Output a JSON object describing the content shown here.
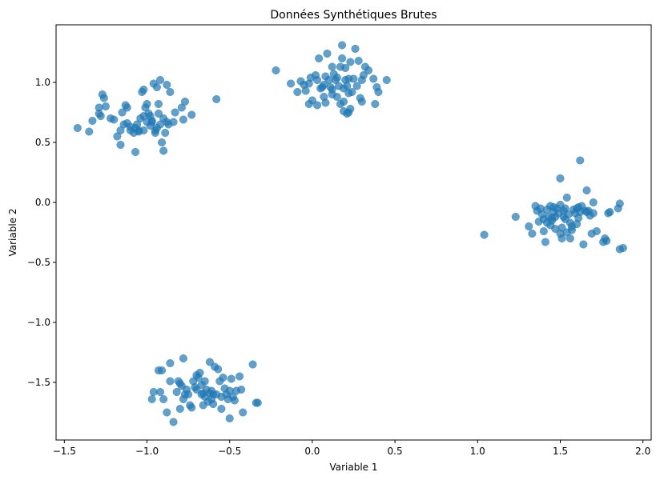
{
  "chart_data": {
    "type": "scatter",
    "title": "Données Synthétiques Brutes",
    "xlabel": "Variable 1",
    "ylabel": "Variable 2",
    "xlim": [
      -1.55,
      2.05
    ],
    "ylim": [
      -1.98,
      1.48
    ],
    "xticks": [
      -1.5,
      -1.0,
      -0.5,
      0.0,
      0.5,
      1.0,
      1.5,
      2.0
    ],
    "xtick_labels": [
      "−1.5",
      "−1.0",
      "−0.5",
      "0.0",
      "0.5",
      "1.0",
      "1.5",
      "2.0"
    ],
    "yticks": [
      -1.5,
      -1.0,
      -0.5,
      0.0,
      0.5,
      1.0
    ],
    "ytick_labels": [
      "−1.5",
      "−1.0",
      "−0.5",
      "0.0",
      "0.5",
      "1.0"
    ],
    "grid": false,
    "color": "#1f77b4",
    "opacity": 0.7,
    "series": [
      {
        "points": [
          [
            -1.42,
            0.62
          ],
          [
            -1.35,
            0.59
          ],
          [
            -1.33,
            0.68
          ],
          [
            -1.29,
            0.74
          ],
          [
            -1.29,
            0.79
          ],
          [
            -1.27,
            0.9
          ],
          [
            -1.26,
            0.87
          ],
          [
            -1.25,
            0.8
          ],
          [
            -1.28,
            0.72
          ],
          [
            -1.22,
            0.7
          ],
          [
            -1.2,
            0.69
          ],
          [
            -1.18,
            0.55
          ],
          [
            -1.16,
            0.48
          ],
          [
            -1.16,
            0.6
          ],
          [
            -1.14,
            0.65
          ],
          [
            -1.12,
            0.66
          ],
          [
            -1.12,
            0.79
          ],
          [
            -1.15,
            0.75
          ],
          [
            -1.13,
            0.81
          ],
          [
            -1.1,
            0.6
          ],
          [
            -1.08,
            0.58
          ],
          [
            -1.07,
            0.62
          ],
          [
            -1.06,
            0.65
          ],
          [
            -1.07,
            0.42
          ],
          [
            -1.05,
            0.59
          ],
          [
            -1.04,
            0.7
          ],
          [
            -1.02,
            0.6
          ],
          [
            -1.03,
            0.92
          ],
          [
            -1.02,
            0.94
          ],
          [
            -1.0,
            0.82
          ],
          [
            -0.99,
            0.74
          ],
          [
            -0.98,
            0.64
          ],
          [
            -0.98,
            0.72
          ],
          [
            -0.97,
            0.68
          ],
          [
            -0.96,
            0.99
          ],
          [
            -0.94,
            0.96
          ],
          [
            -0.95,
            0.6
          ],
          [
            -0.94,
            0.62
          ],
          [
            -0.93,
            0.82
          ],
          [
            -0.93,
            0.74
          ],
          [
            -0.92,
            0.65
          ],
          [
            -0.91,
            0.5
          ],
          [
            -0.9,
            0.43
          ],
          [
            -0.89,
            0.58
          ],
          [
            -0.88,
            0.67
          ],
          [
            -0.87,
            0.65
          ],
          [
            -0.86,
            0.92
          ],
          [
            -0.84,
            0.67
          ],
          [
            -0.83,
            0.75
          ],
          [
            -0.79,
            0.79
          ],
          [
            -0.78,
            0.69
          ],
          [
            -0.77,
            0.84
          ],
          [
            -0.73,
            0.73
          ],
          [
            -0.9,
            0.7
          ],
          [
            -0.97,
            0.67
          ],
          [
            -1.0,
            0.67
          ],
          [
            -1.01,
            0.79
          ],
          [
            -1.1,
            0.63
          ],
          [
            -1.02,
            0.72
          ],
          [
            -0.58,
            0.86
          ],
          [
            -0.92,
            1.02
          ],
          [
            -0.88,
            0.98
          ],
          [
            -0.95,
            0.58
          ],
          [
            -1.05,
            0.6
          ]
        ]
      },
      {
        "points": [
          [
            -0.22,
            1.1
          ],
          [
            -0.13,
            0.99
          ],
          [
            -0.09,
            0.92
          ],
          [
            -0.07,
            1.01
          ],
          [
            -0.05,
            0.98
          ],
          [
            -0.04,
            0.93
          ],
          [
            -0.02,
            0.82
          ],
          [
            -0.02,
            0.99
          ],
          [
            -0.01,
            1.04
          ],
          [
            0.0,
            0.85
          ],
          [
            0.02,
            1.06
          ],
          [
            0.03,
            1.02
          ],
          [
            0.03,
            0.81
          ],
          [
            0.04,
            1.2
          ],
          [
            0.05,
            0.95
          ],
          [
            0.06,
            0.96
          ],
          [
            0.07,
            0.98
          ],
          [
            0.08,
            1.05
          ],
          [
            0.08,
            0.83
          ],
          [
            0.09,
            1.24
          ],
          [
            0.1,
            1.02
          ],
          [
            0.11,
            0.96
          ],
          [
            0.12,
            1.13
          ],
          [
            0.12,
            0.94
          ],
          [
            0.13,
            1.07
          ],
          [
            0.14,
            1.02
          ],
          [
            0.15,
            0.88
          ],
          [
            0.15,
            1.04
          ],
          [
            0.16,
            0.97
          ],
          [
            0.17,
            1.13
          ],
          [
            0.17,
            0.82
          ],
          [
            0.18,
            1.2
          ],
          [
            0.19,
            0.95
          ],
          [
            0.19,
            0.84
          ],
          [
            0.2,
            1.02
          ],
          [
            0.2,
            1.12
          ],
          [
            0.21,
            0.74
          ],
          [
            0.21,
            0.97
          ],
          [
            0.22,
            0.75
          ],
          [
            0.22,
            0.91
          ],
          [
            0.23,
            1.17
          ],
          [
            0.23,
            0.78
          ],
          [
            0.24,
            0.92
          ],
          [
            0.25,
            1.03
          ],
          [
            0.26,
            1.28
          ],
          [
            0.27,
            0.97
          ],
          [
            0.28,
            1.18
          ],
          [
            0.29,
            0.87
          ],
          [
            0.3,
            0.84
          ],
          [
            0.3,
            1.02
          ],
          [
            0.31,
            1.06
          ],
          [
            0.32,
            1.13
          ],
          [
            0.34,
            1.1
          ],
          [
            0.37,
            1.03
          ],
          [
            0.38,
            0.82
          ],
          [
            0.39,
            0.96
          ],
          [
            0.4,
            0.92
          ],
          [
            0.45,
            1.02
          ],
          [
            0.18,
            1.31
          ],
          [
            0.22,
            1.03
          ],
          [
            0.12,
            0.9
          ],
          [
            0.07,
            0.88
          ],
          [
            0.19,
            0.76
          ]
        ]
      },
      {
        "points": [
          [
            1.04,
            -0.27
          ],
          [
            1.23,
            -0.12
          ],
          [
            1.31,
            -0.2
          ],
          [
            1.33,
            -0.26
          ],
          [
            1.35,
            -0.03
          ],
          [
            1.36,
            -0.07
          ],
          [
            1.37,
            -0.16
          ],
          [
            1.38,
            -0.05
          ],
          [
            1.39,
            -0.1
          ],
          [
            1.4,
            -0.24
          ],
          [
            1.4,
            -0.14
          ],
          [
            1.41,
            -0.33
          ],
          [
            1.42,
            -0.17
          ],
          [
            1.42,
            -0.06
          ],
          [
            1.43,
            -0.12
          ],
          [
            1.44,
            -0.03
          ],
          [
            1.45,
            -0.13
          ],
          [
            1.46,
            -0.08
          ],
          [
            1.46,
            -0.04
          ],
          [
            1.47,
            -0.12
          ],
          [
            1.47,
            -0.22
          ],
          [
            1.48,
            -0.05
          ],
          [
            1.49,
            -0.09
          ],
          [
            1.5,
            0.2
          ],
          [
            1.5,
            -0.02
          ],
          [
            1.51,
            -0.3
          ],
          [
            1.51,
            -0.21
          ],
          [
            1.52,
            -0.12
          ],
          [
            1.52,
            -0.07
          ],
          [
            1.53,
            -0.14
          ],
          [
            1.54,
            -0.25
          ],
          [
            1.54,
            0.04
          ],
          [
            1.55,
            -0.1
          ],
          [
            1.56,
            -0.3
          ],
          [
            1.56,
            -0.17
          ],
          [
            1.57,
            -0.23
          ],
          [
            1.58,
            -0.06
          ],
          [
            1.59,
            -0.09
          ],
          [
            1.6,
            -0.05
          ],
          [
            1.61,
            -0.13
          ],
          [
            1.61,
            -0.04
          ],
          [
            1.62,
            0.35
          ],
          [
            1.62,
            -0.08
          ],
          [
            1.63,
            -0.03
          ],
          [
            1.64,
            -0.35
          ],
          [
            1.65,
            -0.07
          ],
          [
            1.66,
            0.1
          ],
          [
            1.67,
            -0.07
          ],
          [
            1.68,
            -0.11
          ],
          [
            1.69,
            -0.26
          ],
          [
            1.7,
            0.0
          ],
          [
            1.7,
            -0.09
          ],
          [
            1.72,
            -0.24
          ],
          [
            1.76,
            -0.33
          ],
          [
            1.77,
            -0.3
          ],
          [
            1.78,
            -0.32
          ],
          [
            1.79,
            -0.09
          ],
          [
            1.8,
            -0.08
          ],
          [
            1.85,
            -0.05
          ],
          [
            1.86,
            -0.01
          ],
          [
            1.86,
            -0.39
          ],
          [
            1.88,
            -0.38
          ],
          [
            1.57,
            -0.2
          ],
          [
            1.44,
            -0.19
          ],
          [
            1.5,
            -0.26
          ],
          [
            1.53,
            -0.05
          ],
          [
            1.66,
            -0.08
          ],
          [
            1.45,
            -0.15
          ],
          [
            1.6,
            -0.18
          ]
        ]
      },
      {
        "points": [
          [
            -0.97,
            -1.64
          ],
          [
            -0.96,
            -1.58
          ],
          [
            -0.93,
            -1.4
          ],
          [
            -0.92,
            -1.58
          ],
          [
            -0.91,
            -1.4
          ],
          [
            -0.9,
            -1.64
          ],
          [
            -0.88,
            -1.75
          ],
          [
            -0.86,
            -1.34
          ],
          [
            -0.86,
            -1.49
          ],
          [
            -0.84,
            -1.83
          ],
          [
            -0.82,
            -1.58
          ],
          [
            -0.81,
            -1.49
          ],
          [
            -0.8,
            -1.72
          ],
          [
            -0.8,
            -1.51
          ],
          [
            -0.79,
            -1.53
          ],
          [
            -0.78,
            -1.64
          ],
          [
            -0.78,
            -1.3
          ],
          [
            -0.77,
            -1.6
          ],
          [
            -0.76,
            -1.56
          ],
          [
            -0.75,
            -1.6
          ],
          [
            -0.74,
            -1.69
          ],
          [
            -0.73,
            -1.71
          ],
          [
            -0.72,
            -1.49
          ],
          [
            -0.71,
            -1.54
          ],
          [
            -0.7,
            -1.44
          ],
          [
            -0.69,
            -1.46
          ],
          [
            -0.68,
            -1.42
          ],
          [
            -0.67,
            -1.52
          ],
          [
            -0.66,
            -1.59
          ],
          [
            -0.66,
            -1.69
          ],
          [
            -0.65,
            -1.62
          ],
          [
            -0.65,
            -1.49
          ],
          [
            -0.64,
            -1.56
          ],
          [
            -0.63,
            -1.66
          ],
          [
            -0.62,
            -1.33
          ],
          [
            -0.61,
            -1.64
          ],
          [
            -0.61,
            -1.57
          ],
          [
            -0.6,
            -1.68
          ],
          [
            -0.59,
            -1.37
          ],
          [
            -0.58,
            -1.6
          ],
          [
            -0.57,
            -1.39
          ],
          [
            -0.56,
            -1.49
          ],
          [
            -0.55,
            -1.62
          ],
          [
            -0.55,
            -1.72
          ],
          [
            -0.54,
            -1.46
          ],
          [
            -0.53,
            -1.55
          ],
          [
            -0.52,
            -1.6
          ],
          [
            -0.51,
            -1.64
          ],
          [
            -0.5,
            -1.8
          ],
          [
            -0.5,
            -1.57
          ],
          [
            -0.49,
            -1.47
          ],
          [
            -0.48,
            -1.62
          ],
          [
            -0.47,
            -1.65
          ],
          [
            -0.46,
            -1.57
          ],
          [
            -0.44,
            -1.45
          ],
          [
            -0.43,
            -1.56
          ],
          [
            -0.42,
            -1.75
          ],
          [
            -0.36,
            -1.35
          ],
          [
            -0.34,
            -1.67
          ],
          [
            -0.33,
            -1.67
          ],
          [
            -0.62,
            -1.59
          ],
          [
            -0.7,
            -1.56
          ],
          [
            -0.6,
            -1.6
          ],
          [
            -0.67,
            -1.6
          ]
        ]
      }
    ]
  }
}
